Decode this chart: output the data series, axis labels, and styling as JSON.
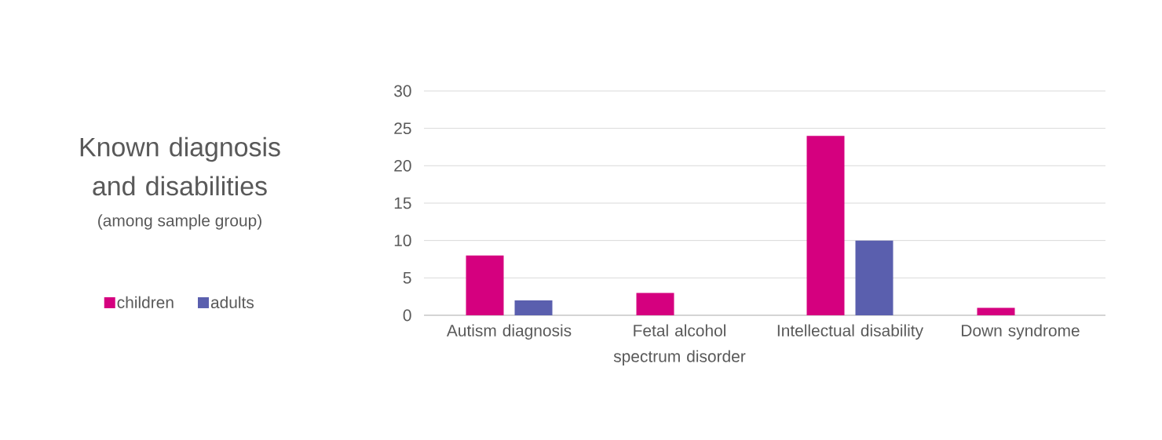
{
  "chart_data": {
    "type": "bar",
    "title": "Known diagnosis and disabilities",
    "subtitle": "(among sample group)",
    "categories": [
      "Autism diagnosis",
      "Fetal alcohol spectrum disorder",
      "Intellectual disability",
      "Down syndrome"
    ],
    "series": [
      {
        "name": "children",
        "color": "#d5007f",
        "values": [
          8,
          3,
          24,
          1
        ]
      },
      {
        "name": "adults",
        "color": "#5a5fae",
        "values": [
          2,
          0,
          10,
          0
        ]
      }
    ],
    "ylim": [
      0,
      30
    ],
    "yticks": [
      0,
      5,
      10,
      15,
      20,
      25,
      30
    ],
    "grid": "y",
    "legend": "left"
  }
}
